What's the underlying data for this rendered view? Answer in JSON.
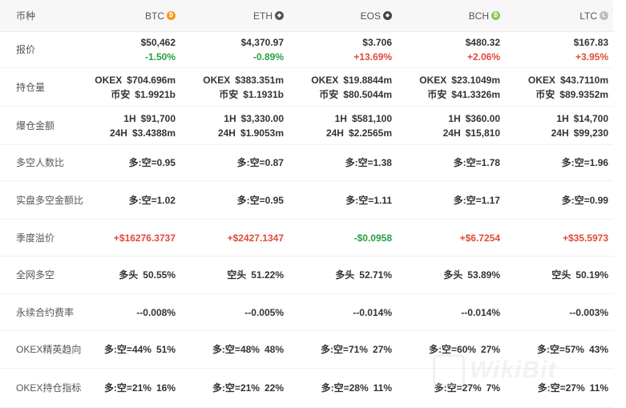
{
  "header": {
    "label": "币种",
    "coins": [
      {
        "name": "BTC",
        "icon": "btc-coin-icon",
        "color": "#f7931a",
        "glyph": "₿"
      },
      {
        "name": "ETH",
        "icon": "eth-coin-icon",
        "color": "#555555",
        "glyph": "◆"
      },
      {
        "name": "EOS",
        "icon": "eos-coin-icon",
        "color": "#444444",
        "glyph": "◆"
      },
      {
        "name": "BCH",
        "icon": "bch-coin-icon",
        "color": "#8dc351",
        "glyph": "₿"
      },
      {
        "name": "LTC",
        "icon": "ltc-coin-icon",
        "color": "#bfbbbb",
        "glyph": "Ł"
      }
    ]
  },
  "rows": {
    "price": {
      "label": "报价",
      "cells": [
        {
          "price": "$50,462",
          "change": "-1.50%",
          "dir": "down"
        },
        {
          "price": "$4,370.97",
          "change": "-0.89%",
          "dir": "down"
        },
        {
          "price": "$3.706",
          "change": "+13.69%",
          "dir": "up"
        },
        {
          "price": "$480.32",
          "change": "+2.06%",
          "dir": "up"
        },
        {
          "price": "$167.83",
          "change": "+3.95%",
          "dir": "up"
        }
      ]
    },
    "open_interest": {
      "label": "持仓量",
      "cells": [
        {
          "l1": "OKEX",
          "v1": "$704.696m",
          "l2": "币安",
          "v2": "$1.9921b"
        },
        {
          "l1": "OKEX",
          "v1": "$383.351m",
          "l2": "币安",
          "v2": "$1.1931b"
        },
        {
          "l1": "OKEX",
          "v1": "$19.8844m",
          "l2": "币安",
          "v2": "$80.5044m"
        },
        {
          "l1": "OKEX",
          "v1": "$23.1049m",
          "l2": "币安",
          "v2": "$41.3326m"
        },
        {
          "l1": "OKEX",
          "v1": "$43.7110m",
          "l2": "币安",
          "v2": "$89.9352m"
        }
      ]
    },
    "liquidations": {
      "label": "爆仓金额",
      "cells": [
        {
          "l1": "1H",
          "v1": "$91,700",
          "l2": "24H",
          "v2": "$3.4388m"
        },
        {
          "l1": "1H",
          "v1": "$3,330.00",
          "l2": "24H",
          "v2": "$1.9053m"
        },
        {
          "l1": "1H",
          "v1": "$581,100",
          "l2": "24H",
          "v2": "$2.2565m"
        },
        {
          "l1": "1H",
          "v1": "$360.00",
          "l2": "24H",
          "v2": "$15,810"
        },
        {
          "l1": "1H",
          "v1": "$14,700",
          "l2": "24H",
          "v2": "$99,230"
        }
      ]
    },
    "long_short_people": {
      "label": "多空人数比",
      "cells": [
        "多:空=0.95",
        "多:空=0.87",
        "多:空=1.38",
        "多:空=1.78",
        "多:空=1.96"
      ]
    },
    "long_short_amount": {
      "label": "实盘多空金额比",
      "cells": [
        "多:空=1.02",
        "多:空=0.95",
        "多:空=1.11",
        "多:空=1.17",
        "多:空=0.99"
      ]
    },
    "quarterly_premium": {
      "label": "季度溢价",
      "cells": [
        {
          "value": "+$16276.3737",
          "dir": "up"
        },
        {
          "value": "+$2427.1347",
          "dir": "up"
        },
        {
          "value": "-$0.0958",
          "dir": "down"
        },
        {
          "value": "+$6.7254",
          "dir": "up"
        },
        {
          "value": "+$35.5973",
          "dir": "up"
        }
      ]
    },
    "network_long_short": {
      "label": "全网多空",
      "cells": [
        {
          "side": "多头",
          "pct": "50.55%"
        },
        {
          "side": "空头",
          "pct": "51.22%"
        },
        {
          "side": "多头",
          "pct": "52.71%"
        },
        {
          "side": "多头",
          "pct": "53.89%"
        },
        {
          "side": "空头",
          "pct": "50.19%"
        }
      ]
    },
    "funding_rate": {
      "label": "永续合约费率",
      "cells": [
        "--0.008%",
        "--0.005%",
        "--0.014%",
        "--0.014%",
        "--0.003%"
      ]
    },
    "okex_elite_trend": {
      "label": "OKEX精英趋向",
      "cells": [
        {
          "ratio": "多:空=44%",
          "pct": "51%"
        },
        {
          "ratio": "多:空=48%",
          "pct": "48%"
        },
        {
          "ratio": "多:空=71%",
          "pct": "27%"
        },
        {
          "ratio": "多:空=60%",
          "pct": "27%"
        },
        {
          "ratio": "多:空=57%",
          "pct": "43%"
        }
      ]
    },
    "okex_position_index": {
      "label": "OKEX持仓指标",
      "cells": [
        {
          "ratio": "多:空=21%",
          "pct": "16%"
        },
        {
          "ratio": "多:空=21%",
          "pct": "22%"
        },
        {
          "ratio": "多:空=28%",
          "pct": "11%"
        },
        {
          "ratio": "多:空=27%",
          "pct": "7%"
        },
        {
          "ratio": "多:空=27%",
          "pct": "11%"
        }
      ]
    }
  },
  "watermark": {
    "text": "WikiBit",
    "icon": "wikibit-logo-icon"
  }
}
